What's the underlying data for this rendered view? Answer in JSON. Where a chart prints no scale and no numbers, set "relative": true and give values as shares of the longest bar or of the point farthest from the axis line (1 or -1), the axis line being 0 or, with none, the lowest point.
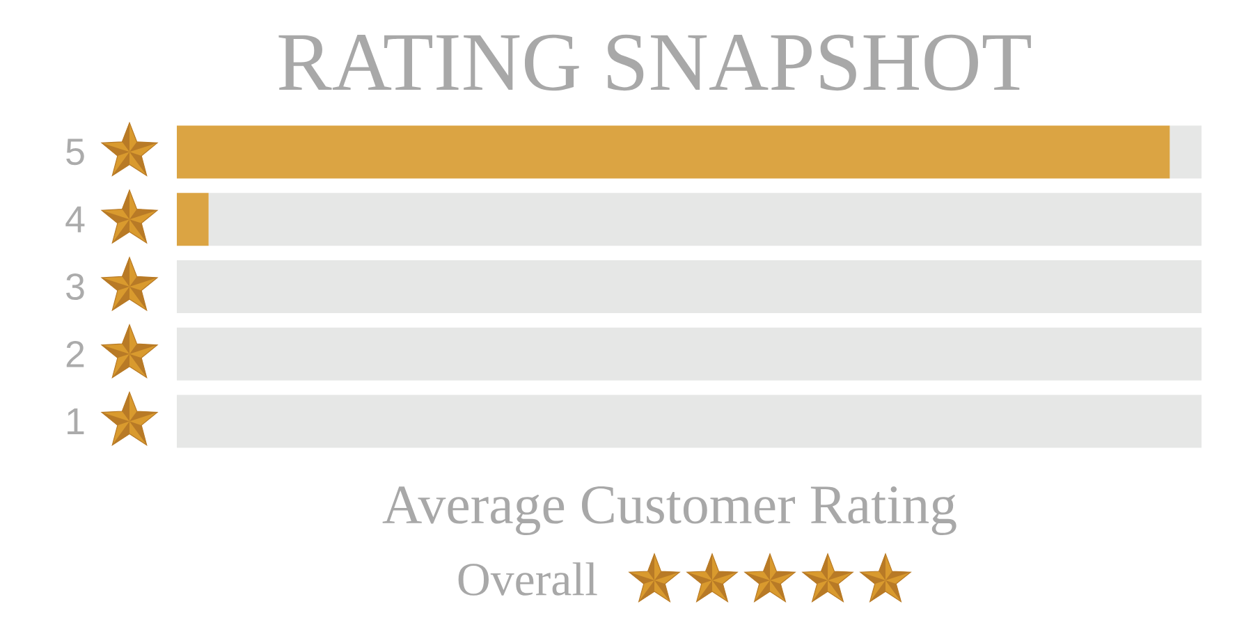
{
  "chart_data": {
    "type": "bar",
    "title": "RATING SNAPSHOT",
    "orientation": "horizontal",
    "stacked": true,
    "relative": true,
    "tick_labels": "y",
    "categories": [
      "5",
      "4",
      "3",
      "2",
      "1"
    ],
    "series": [
      {
        "color": "#dba443",
        "values": [
          0.969,
          0.031,
          0,
          0,
          0
        ]
      },
      {
        "color": "#e6e7e6",
        "values": [
          0.031,
          0.969,
          1,
          1,
          1
        ]
      }
    ],
    "annotations": [
      "Average Customer Rating",
      "Overall"
    ]
  }
}
